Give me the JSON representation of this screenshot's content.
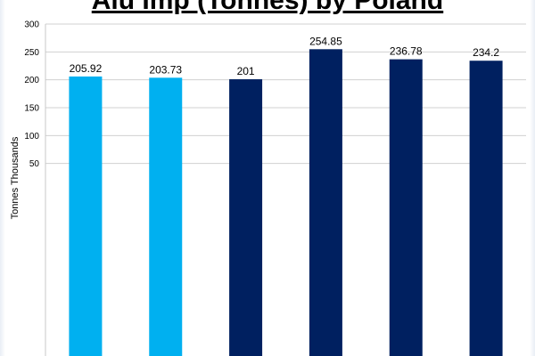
{
  "chart_data": {
    "type": "bar",
    "title": "Alu Imp (Tonnes) by Poland",
    "xlabel": "",
    "ylabel": "Tonnes Thousands",
    "ylim": [
      0,
      300
    ],
    "yticks": [
      50,
      100,
      150,
      200,
      250,
      300
    ],
    "grid": true,
    "legend": "none",
    "categories": [
      "",
      "",
      "",
      "",
      "",
      ""
    ],
    "values": [
      205.92,
      203.73,
      201,
      254.85,
      236.78,
      234.2
    ],
    "data_labels": [
      "205.92",
      "203.73",
      "201",
      "254.85",
      "236.78",
      "234.2"
    ],
    "bar_colors": [
      "#00b0f0",
      "#00b0f0",
      "#002060",
      "#002060",
      "#002060",
      "#002060"
    ]
  }
}
